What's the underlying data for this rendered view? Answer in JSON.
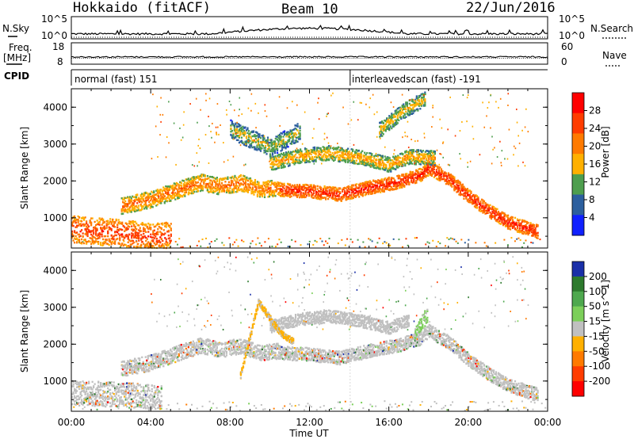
{
  "header": {
    "station": "Hokkaido (fitACF)",
    "beam": "Beam 10",
    "date": "22/Jun/2016"
  },
  "status_panels": {
    "nsky_label": "N.Sky",
    "nsearch_label": "N.Search",
    "noise_ticks_left": [
      "10^5",
      "10^0"
    ],
    "noise_ticks_right": [
      "10^5",
      "10^0"
    ],
    "freq_label_top": "Freq.",
    "freq_label_bottom": "[MHz]",
    "freq_ticks": [
      "18",
      "8"
    ],
    "nave_label": "Nave",
    "nave_ticks": [
      "60",
      "0"
    ],
    "cpid_label": "CPID",
    "cpid_segments": [
      {
        "name": "normal (fast) 151",
        "start_hour": 0,
        "end_hour": 14.05
      },
      {
        "name": "interleavedscan (fast) -191",
        "start_hour": 14.05,
        "end_hour": 24
      }
    ]
  },
  "chart_data": [
    {
      "type": "heatmap",
      "title": "",
      "xlabel": "",
      "ylabel": "Slant Range [km]",
      "x_ticks": [
        "00:00",
        "04:00",
        "08:00",
        "12:00",
        "16:00",
        "20:00",
        "00:00"
      ],
      "y_ticks": [
        "1000",
        "2000",
        "3000",
        "4000"
      ],
      "xlim": [
        0,
        24
      ],
      "ylim": [
        180,
        4500
      ],
      "colorbar_label": "Power [dB]",
      "colorbar_ticks": [
        "28",
        "24",
        "20",
        "16",
        "12",
        "8",
        "4"
      ],
      "colorbar_colors": [
        "#ff0000",
        "#ff3c00",
        "#ff7a00",
        "#ffb000",
        "#4e9e4e",
        "#2c5f9e",
        "#1020ff"
      ],
      "colorbar_range": [
        0,
        30
      ],
      "echo_bands": [
        {
          "hours": [
            0,
            1,
            2,
            3,
            4,
            5
          ],
          "range_km": [
            700,
            640,
            620,
            560,
            480,
            520
          ],
          "width_km": 520,
          "level_db": 26
        },
        {
          "hours": [
            2.5,
            4,
            5.5,
            6.5,
            7.5,
            8.5,
            9.5,
            10.5
          ],
          "range_km": [
            1320,
            1500,
            1780,
            1960,
            1850,
            1950,
            1760,
            1820
          ],
          "width_km": 320,
          "level_db": 22
        },
        {
          "hours": [
            10.5,
            12,
            13.5,
            15,
            16.5,
            17.5,
            18,
            19,
            20,
            21,
            22,
            23.5
          ],
          "range_km": [
            1760,
            1720,
            1630,
            1820,
            1980,
            2150,
            2350,
            2050,
            1580,
            1200,
            880,
            620
          ],
          "width_km": 260,
          "level_db": 28
        },
        {
          "hours": [
            10,
            11.5,
            13,
            14.5,
            16,
            17,
            18.3
          ],
          "range_km": [
            2480,
            2680,
            2760,
            2640,
            2440,
            2660,
            2620
          ],
          "width_km": 280,
          "level_db": 18
        },
        {
          "hours": [
            8,
            9,
            10,
            11.5
          ],
          "range_km": [
            3400,
            3150,
            2900,
            3350
          ],
          "width_km": 360,
          "level_db": 14
        },
        {
          "hours": [
            15.5,
            16.3,
            17,
            17.8
          ],
          "range_km": [
            3380,
            3720,
            4000,
            4200
          ],
          "width_km": 300,
          "level_db": 16
        }
      ]
    },
    {
      "type": "heatmap",
      "title": "",
      "xlabel": "Time UT",
      "ylabel": "Slant Range [km]",
      "x_ticks": [
        "00:00",
        "04:00",
        "08:00",
        "12:00",
        "16:00",
        "20:00",
        "00:00"
      ],
      "y_ticks": [
        "1000",
        "2000",
        "3000",
        "4000"
      ],
      "xlim": [
        0,
        24
      ],
      "ylim": [
        180,
        4500
      ],
      "colorbar_label": "Velocity [m s^-1]",
      "colorbar_ticks": [
        "200",
        "100",
        "50",
        "15",
        "-15",
        "-50",
        "-100",
        "-200"
      ],
      "colorbar_colors": [
        "#1a2fa8",
        "#2d7a2d",
        "#4ea84e",
        "#7ccf5a",
        "#c0c0c0",
        "#ffb000",
        "#ff7a00",
        "#ff3c00",
        "#ff0000"
      ],
      "colorbar_range": [
        -250,
        250
      ],
      "echo_bands": [
        {
          "hours": [
            0,
            1.5,
            3,
            4.5
          ],
          "range_km": [
            680,
            650,
            620,
            560
          ],
          "width_km": 480,
          "velocity": 0
        },
        {
          "hours": [
            2.5,
            4,
            5.5,
            6.5,
            7.5,
            8.5,
            9.5,
            10.5
          ],
          "range_km": [
            1320,
            1500,
            1780,
            1960,
            1850,
            1950,
            1760,
            1820
          ],
          "width_km": 300,
          "velocity": 0
        },
        {
          "hours": [
            10.5,
            12,
            13.5,
            15,
            16.5,
            17.5,
            18,
            19,
            20,
            21,
            22,
            23.5
          ],
          "range_km": [
            1760,
            1720,
            1630,
            1820,
            1980,
            2150,
            2350,
            2050,
            1580,
            1200,
            880,
            620
          ],
          "width_km": 260,
          "velocity": 0
        },
        {
          "hours": [
            17.3,
            17.6,
            17.9
          ],
          "range_km": [
            2300,
            2550,
            2800
          ],
          "width_km": 300,
          "velocity": 40
        },
        {
          "hours": [
            10,
            11.5,
            13,
            14.5,
            16,
            17
          ],
          "range_km": [
            2480,
            2680,
            2760,
            2640,
            2440,
            2660
          ],
          "width_km": 240,
          "velocity": -20
        },
        {
          "hours": [
            8.5,
            9.4,
            10.5,
            11.2
          ],
          "range_km": [
            1160,
            3150,
            2300,
            2050
          ],
          "width_km": 120,
          "velocity": -60
        }
      ]
    }
  ]
}
